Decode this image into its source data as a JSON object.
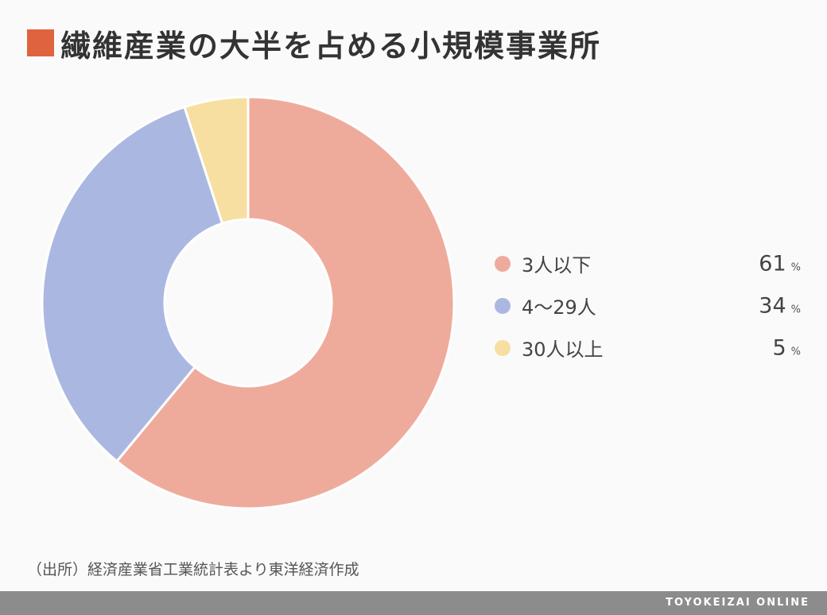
{
  "title": "繊維産業の大半を占める小規模事業所",
  "title_marker_color": "#e0633f",
  "source": "（出所）経済産業省工業統計表より東洋経済作成",
  "brand": "TOYOKEIZAI ONLINE",
  "chart_data": {
    "type": "pie",
    "style": "donut",
    "title": "繊維産業の大半を占める小規模事業所",
    "unit": "%",
    "legend_placement": "right",
    "start_angle": "12 o'clock",
    "direction": "clockwise",
    "categories": [
      "3人以下",
      "4〜29人",
      "30人以上"
    ],
    "values": [
      61,
      34,
      5
    ],
    "colors": [
      "#eeab9c",
      "#aab8e1",
      "#f6dfa0"
    ]
  }
}
